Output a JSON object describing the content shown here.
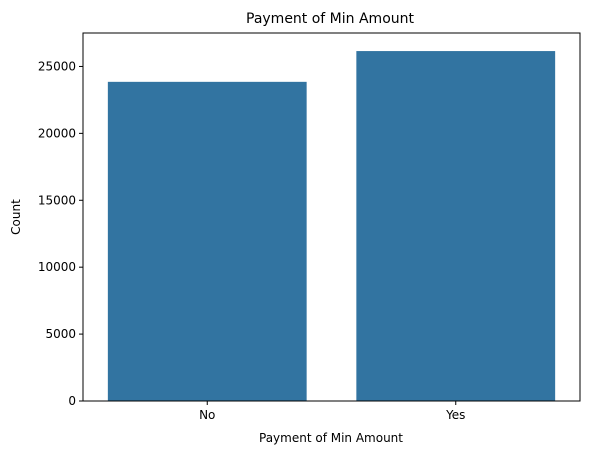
{
  "chart_data": {
    "type": "bar",
    "title": "Payment of Min Amount",
    "xlabel": "Payment of Min Amount",
    "ylabel": "Count",
    "categories": [
      "No",
      "Yes"
    ],
    "values": [
      23850,
      26150
    ],
    "ylim": [
      0,
      27500
    ],
    "yticks": [
      0,
      5000,
      10000,
      15000,
      20000,
      25000
    ],
    "bar_color": "#3274a1",
    "grid": false
  }
}
